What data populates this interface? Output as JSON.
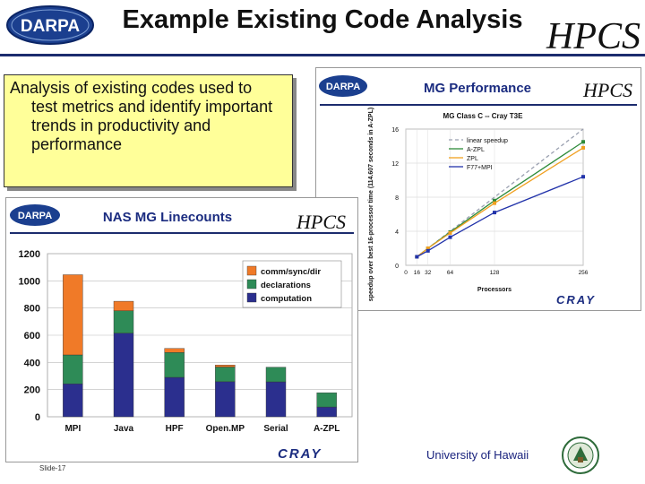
{
  "slide": {
    "title": "Example Existing Code Analysis",
    "callout_line1": "Analysis of existing codes used to",
    "callout_rest": "test metrics and identify important trends in productivity and performance",
    "footer_org": "University of Hawaii",
    "slide_number": "Slide-17",
    "logo_darpa_text": "DARPA",
    "logo_hpcs_text": "HPCS",
    "logo_cray_text": "CRAY"
  },
  "mg_panel": {
    "header": "MG Performance",
    "logo_darpa_text": "DARPA",
    "logo_hpcs_text": "HPCS",
    "logo_cray_text": "CRAY"
  },
  "nas_panel": {
    "header": "NAS MG Linecounts",
    "logo_darpa_text": "DARPA",
    "logo_hpcs_text": "HPCS"
  },
  "chart_data": [
    {
      "type": "line",
      "title": "MG Class C -- Cray T3E",
      "xlabel": "Processors",
      "ylabel": "speedup over best 16-processor time (114.607 seconds in A-ZPL)",
      "x": [
        16,
        32,
        64,
        128,
        256
      ],
      "xticks": [
        0,
        16,
        32,
        64,
        128,
        256
      ],
      "yticks": [
        0,
        4,
        8,
        12,
        16
      ],
      "xlim": [
        0,
        256
      ],
      "ylim": [
        0,
        16
      ],
      "grid": true,
      "legend": "top-left",
      "series": [
        {
          "name": "linear speedup",
          "values": [
            1,
            2,
            4,
            8,
            16
          ],
          "color": "#9aa0b0",
          "dash": true
        },
        {
          "name": "A-ZPL",
          "values": [
            1,
            2,
            3.9,
            7.6,
            14.5
          ],
          "color": "#2e8b3a"
        },
        {
          "name": "ZPL",
          "values": [
            1,
            2,
            3.8,
            7.3,
            13.8
          ],
          "color": "#f0a020"
        },
        {
          "name": "F77+MPI",
          "values": [
            1,
            1.7,
            3.3,
            6.2,
            10.4
          ],
          "color": "#2233aa"
        }
      ]
    },
    {
      "type": "bar",
      "title": "",
      "categories": [
        "MPI",
        "Java",
        "HPF",
        "Open.MP",
        "Serial",
        "A-ZPL"
      ],
      "ylim": [
        0,
        1200
      ],
      "yticks": [
        0,
        200,
        400,
        600,
        800,
        1000,
        1200
      ],
      "grid": true,
      "legend": "top-right",
      "stacked": true,
      "series": [
        {
          "name": "computation",
          "values": [
            242,
            615,
            290,
            258,
            257,
            72
          ],
          "color": "#2b2f8e"
        },
        {
          "name": "declarations",
          "values": [
            213,
            165,
            183,
            108,
            108,
            105
          ],
          "color": "#2e8b57"
        },
        {
          "name": "comm/sync/dir",
          "values": [
            590,
            70,
            30,
            15,
            0,
            0
          ],
          "color": "#f07a28"
        }
      ]
    }
  ]
}
